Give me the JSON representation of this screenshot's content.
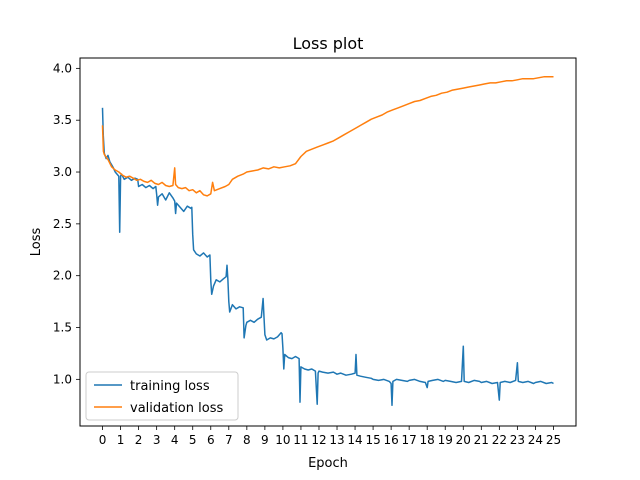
{
  "chart_data": {
    "type": "line",
    "title": "Loss plot",
    "xlabel": "Epoch",
    "ylabel": "Loss",
    "xlim": [
      -1.25,
      26.25
    ],
    "ylim": [
      0.55,
      4.1
    ],
    "xticks": [
      0,
      1,
      2,
      3,
      4,
      5,
      6,
      7,
      8,
      9,
      10,
      11,
      12,
      13,
      14,
      15,
      16,
      17,
      18,
      19,
      20,
      21,
      22,
      23,
      24,
      25
    ],
    "yticks": [
      1.0,
      1.5,
      2.0,
      2.5,
      3.0,
      3.5,
      4.0
    ],
    "ytick_labels": [
      "1.0",
      "1.5",
      "2.0",
      "2.5",
      "3.0",
      "3.5",
      "4.0"
    ],
    "grid": false,
    "legend": "lower-left",
    "series": [
      {
        "name": "training loss",
        "color": "#1f77b4",
        "points": [
          [
            0.0,
            3.62
          ],
          [
            0.04,
            3.35
          ],
          [
            0.1,
            3.18
          ],
          [
            0.2,
            3.13
          ],
          [
            0.3,
            3.16
          ],
          [
            0.4,
            3.1
          ],
          [
            0.5,
            3.07
          ],
          [
            0.6,
            3.04
          ],
          [
            0.7,
            3.0
          ],
          [
            0.8,
            2.98
          ],
          [
            0.9,
            2.96
          ],
          [
            0.95,
            2.42
          ],
          [
            1.0,
            2.96
          ],
          [
            1.05,
            2.98
          ],
          [
            1.2,
            2.93
          ],
          [
            1.4,
            2.95
          ],
          [
            1.6,
            2.92
          ],
          [
            1.8,
            2.94
          ],
          [
            1.95,
            2.93
          ],
          [
            2.0,
            2.86
          ],
          [
            2.2,
            2.88
          ],
          [
            2.4,
            2.85
          ],
          [
            2.6,
            2.87
          ],
          [
            2.8,
            2.84
          ],
          [
            2.95,
            2.86
          ],
          [
            3.0,
            2.78
          ],
          [
            3.05,
            2.68
          ],
          [
            3.1,
            2.76
          ],
          [
            3.3,
            2.79
          ],
          [
            3.5,
            2.73
          ],
          [
            3.7,
            2.8
          ],
          [
            3.9,
            2.75
          ],
          [
            4.0,
            2.72
          ],
          [
            4.05,
            2.6
          ],
          [
            4.1,
            2.7
          ],
          [
            4.3,
            2.66
          ],
          [
            4.5,
            2.62
          ],
          [
            4.7,
            2.67
          ],
          [
            4.9,
            2.65
          ],
          [
            4.95,
            2.66
          ],
          [
            5.0,
            2.4
          ],
          [
            5.05,
            2.25
          ],
          [
            5.2,
            2.21
          ],
          [
            5.4,
            2.19
          ],
          [
            5.6,
            2.22
          ],
          [
            5.8,
            2.18
          ],
          [
            5.95,
            2.2
          ],
          [
            6.0,
            1.95
          ],
          [
            6.05,
            1.82
          ],
          [
            6.15,
            1.9
          ],
          [
            6.3,
            1.96
          ],
          [
            6.5,
            1.94
          ],
          [
            6.7,
            1.97
          ],
          [
            6.85,
            1.99
          ],
          [
            6.9,
            2.1
          ],
          [
            6.95,
            1.96
          ],
          [
            7.0,
            1.75
          ],
          [
            7.05,
            1.65
          ],
          [
            7.2,
            1.72
          ],
          [
            7.4,
            1.68
          ],
          [
            7.6,
            1.7
          ],
          [
            7.8,
            1.69
          ],
          [
            7.85,
            1.4
          ],
          [
            7.95,
            1.52
          ],
          [
            8.0,
            1.55
          ],
          [
            8.2,
            1.57
          ],
          [
            8.4,
            1.55
          ],
          [
            8.6,
            1.58
          ],
          [
            8.8,
            1.6
          ],
          [
            8.9,
            1.78
          ],
          [
            8.95,
            1.6
          ],
          [
            9.0,
            1.43
          ],
          [
            9.1,
            1.38
          ],
          [
            9.3,
            1.4
          ],
          [
            9.5,
            1.39
          ],
          [
            9.7,
            1.41
          ],
          [
            9.9,
            1.45
          ],
          [
            9.95,
            1.44
          ],
          [
            10.0,
            1.3
          ],
          [
            10.05,
            1.1
          ],
          [
            10.1,
            1.24
          ],
          [
            10.3,
            1.21
          ],
          [
            10.5,
            1.2
          ],
          [
            10.7,
            1.22
          ],
          [
            10.9,
            1.2
          ],
          [
            10.95,
            0.78
          ],
          [
            11.0,
            1.12
          ],
          [
            11.2,
            1.1
          ],
          [
            11.4,
            1.09
          ],
          [
            11.6,
            1.1
          ],
          [
            11.8,
            1.08
          ],
          [
            11.9,
            0.76
          ],
          [
            11.95,
            1.06
          ],
          [
            12.0,
            1.08
          ],
          [
            12.2,
            1.07
          ],
          [
            12.5,
            1.06
          ],
          [
            12.8,
            1.07
          ],
          [
            13.0,
            1.05
          ],
          [
            13.2,
            1.06
          ],
          [
            13.5,
            1.04
          ],
          [
            13.8,
            1.05
          ],
          [
            14.0,
            1.06
          ],
          [
            14.05,
            1.24
          ],
          [
            14.1,
            1.04
          ],
          [
            14.3,
            1.03
          ],
          [
            14.6,
            1.02
          ],
          [
            14.9,
            1.01
          ],
          [
            15.0,
            1.0
          ],
          [
            15.3,
            0.99
          ],
          [
            15.6,
            1.0
          ],
          [
            15.9,
            0.98
          ],
          [
            16.0,
            0.96
          ],
          [
            16.05,
            0.75
          ],
          [
            16.1,
            0.98
          ],
          [
            16.3,
            1.0
          ],
          [
            16.6,
            0.99
          ],
          [
            16.9,
            0.98
          ],
          [
            17.0,
            0.99
          ],
          [
            17.3,
            1.0
          ],
          [
            17.6,
            0.98
          ],
          [
            17.9,
            0.97
          ],
          [
            18.0,
            0.92
          ],
          [
            18.05,
            0.98
          ],
          [
            18.3,
            0.99
          ],
          [
            18.6,
            1.0
          ],
          [
            18.9,
            0.98
          ],
          [
            19.0,
            0.99
          ],
          [
            19.3,
            0.98
          ],
          [
            19.6,
            0.97
          ],
          [
            19.9,
            0.98
          ],
          [
            20.0,
            1.32
          ],
          [
            20.05,
            0.98
          ],
          [
            20.3,
            0.97
          ],
          [
            20.6,
            0.99
          ],
          [
            20.9,
            0.98
          ],
          [
            21.0,
            0.97
          ],
          [
            21.3,
            0.98
          ],
          [
            21.6,
            0.96
          ],
          [
            21.9,
            0.97
          ],
          [
            22.0,
            0.8
          ],
          [
            22.05,
            0.97
          ],
          [
            22.3,
            0.98
          ],
          [
            22.6,
            0.97
          ],
          [
            22.9,
            0.99
          ],
          [
            23.0,
            1.16
          ],
          [
            23.05,
            0.98
          ],
          [
            23.3,
            0.97
          ],
          [
            23.6,
            0.98
          ],
          [
            23.9,
            0.96
          ],
          [
            24.0,
            0.97
          ],
          [
            24.3,
            0.98
          ],
          [
            24.6,
            0.96
          ],
          [
            24.9,
            0.97
          ],
          [
            25.0,
            0.96
          ]
        ]
      },
      {
        "name": "validation loss",
        "color": "#ff7f0e",
        "points": [
          [
            0.0,
            3.45
          ],
          [
            0.05,
            3.2
          ],
          [
            0.1,
            3.17
          ],
          [
            0.3,
            3.12
          ],
          [
            0.5,
            3.05
          ],
          [
            0.7,
            3.02
          ],
          [
            0.9,
            3.0
          ],
          [
            1.1,
            2.97
          ],
          [
            1.3,
            2.95
          ],
          [
            1.5,
            2.96
          ],
          [
            1.7,
            2.94
          ],
          [
            1.9,
            2.92
          ],
          [
            2.1,
            2.93
          ],
          [
            2.3,
            2.91
          ],
          [
            2.5,
            2.9
          ],
          [
            2.7,
            2.92
          ],
          [
            2.9,
            2.89
          ],
          [
            3.1,
            2.88
          ],
          [
            3.3,
            2.9
          ],
          [
            3.5,
            2.87
          ],
          [
            3.7,
            2.86
          ],
          [
            3.9,
            2.87
          ],
          [
            4.0,
            3.04
          ],
          [
            4.05,
            2.88
          ],
          [
            4.2,
            2.85
          ],
          [
            4.4,
            2.84
          ],
          [
            4.6,
            2.85
          ],
          [
            4.8,
            2.82
          ],
          [
            5.0,
            2.83
          ],
          [
            5.2,
            2.8
          ],
          [
            5.4,
            2.82
          ],
          [
            5.6,
            2.78
          ],
          [
            5.8,
            2.77
          ],
          [
            6.0,
            2.79
          ],
          [
            6.1,
            2.9
          ],
          [
            6.2,
            2.82
          ],
          [
            6.5,
            2.84
          ],
          [
            6.8,
            2.86
          ],
          [
            7.0,
            2.88
          ],
          [
            7.2,
            2.93
          ],
          [
            7.5,
            2.96
          ],
          [
            7.8,
            2.98
          ],
          [
            8.0,
            3.0
          ],
          [
            8.3,
            3.01
          ],
          [
            8.6,
            3.02
          ],
          [
            8.9,
            3.04
          ],
          [
            9.2,
            3.03
          ],
          [
            9.5,
            3.05
          ],
          [
            9.8,
            3.04
          ],
          [
            10.1,
            3.05
          ],
          [
            10.4,
            3.06
          ],
          [
            10.7,
            3.08
          ],
          [
            11.0,
            3.15
          ],
          [
            11.3,
            3.2
          ],
          [
            11.6,
            3.22
          ],
          [
            11.9,
            3.24
          ],
          [
            12.2,
            3.26
          ],
          [
            12.5,
            3.28
          ],
          [
            12.8,
            3.3
          ],
          [
            13.1,
            3.33
          ],
          [
            13.4,
            3.36
          ],
          [
            13.7,
            3.39
          ],
          [
            14.0,
            3.42
          ],
          [
            14.3,
            3.45
          ],
          [
            14.6,
            3.48
          ],
          [
            14.9,
            3.51
          ],
          [
            15.2,
            3.53
          ],
          [
            15.5,
            3.55
          ],
          [
            15.8,
            3.58
          ],
          [
            16.1,
            3.6
          ],
          [
            16.4,
            3.62
          ],
          [
            16.7,
            3.64
          ],
          [
            17.0,
            3.66
          ],
          [
            17.3,
            3.68
          ],
          [
            17.6,
            3.69
          ],
          [
            17.9,
            3.71
          ],
          [
            18.2,
            3.73
          ],
          [
            18.5,
            3.74
          ],
          [
            18.8,
            3.76
          ],
          [
            19.1,
            3.77
          ],
          [
            19.4,
            3.79
          ],
          [
            19.7,
            3.8
          ],
          [
            20.0,
            3.81
          ],
          [
            20.3,
            3.82
          ],
          [
            20.6,
            3.83
          ],
          [
            20.9,
            3.84
          ],
          [
            21.2,
            3.85
          ],
          [
            21.5,
            3.86
          ],
          [
            21.8,
            3.86
          ],
          [
            22.1,
            3.87
          ],
          [
            22.4,
            3.88
          ],
          [
            22.7,
            3.88
          ],
          [
            23.0,
            3.89
          ],
          [
            23.3,
            3.9
          ],
          [
            23.6,
            3.9
          ],
          [
            23.9,
            3.9
          ],
          [
            24.2,
            3.91
          ],
          [
            24.5,
            3.92
          ],
          [
            24.8,
            3.92
          ],
          [
            25.0,
            3.92
          ]
        ]
      }
    ]
  }
}
